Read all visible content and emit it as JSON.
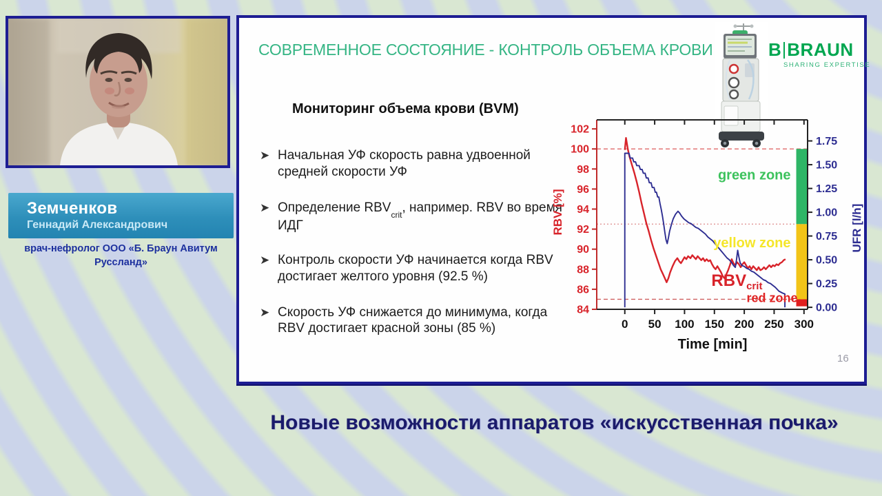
{
  "speaker": {
    "surname": "Земченков",
    "given_names": "Геннадий Александрович",
    "role": "врач-нефролог ООО «Б. Браун Авитум Руссланд»"
  },
  "slide": {
    "title": "СОВРЕМЕННОЕ СОСТОЯНИЕ - КОНТРОЛЬ ОБЪЕМА КРОВИ",
    "logo": {
      "b": "B",
      "braun": "BRAUN",
      "tagline": "SHARING EXPERTISE"
    },
    "heading": "Мониторинг объема крови (BVM)",
    "bullets": [
      {
        "pre": "Начальная УФ скорость равна удвоенной средней скорости УФ"
      },
      {
        "pre": "Определение RBV",
        "sub": "crit",
        "post": ", например. RBV во время ИДГ"
      },
      {
        "pre": "Контроль скорости УФ начинается когда RBV достигает желтого уровня (92.5 %)"
      },
      {
        "pre": "Скорость УФ снижается до минимума, когда RBV достигает красной зоны (85 %)"
      }
    ],
    "page_number": "16"
  },
  "footer": {
    "title": "Новые возможности аппаратов «искусственная почка»"
  },
  "chart_data": {
    "type": "line",
    "xlabel": "Time [min]",
    "ylabel_left": "RBV [%]",
    "ylabel_right": "UFR [l/h]",
    "x_ticks": [
      0,
      50,
      100,
      150,
      200,
      250,
      300
    ],
    "x_range_shown": [
      -47,
      306
    ],
    "y_left_ticks": [
      84,
      86,
      88,
      90,
      92,
      94,
      96,
      98,
      100,
      102
    ],
    "y_left_range": [
      84,
      102.9
    ],
    "y_right_tick_labels": [
      "0.00",
      "0.25",
      "0.50",
      "0.75",
      "1.00",
      "1.25",
      "1.50",
      "1.75"
    ],
    "y_right_range": [
      0,
      1.75
    ],
    "right_axis_alignment_in_left_units": {
      "ufr_0": 84.2,
      "ufr_1_75": 100.8
    },
    "reference_lines": [
      {
        "y": 100,
        "style": "dashed",
        "color": "#e06a6a"
      },
      {
        "y": 92.5,
        "style": "dotted",
        "color": "#e09595"
      },
      {
        "y": 85,
        "style": "dashed",
        "color": "#cf5f5f"
      }
    ],
    "zones": [
      {
        "label": "green zone",
        "from": 92.5,
        "to": 100,
        "bar_color": "#2eb566",
        "label_color": "#3cc25c"
      },
      {
        "label": "yellow zone",
        "from": 85,
        "to": 92.5,
        "bar_color": "#f2c418",
        "label_color": "#f5e62a"
      },
      {
        "label": "red zone",
        "from": 84.3,
        "to": 85,
        "bar_color": "#e01f1f",
        "label_color": "#e02424"
      }
    ],
    "zone_bar_x_from": 287,
    "annotations": [
      {
        "text": "RBV",
        "sub": "crit",
        "color": "#d8232a",
        "x": 145,
        "y": 87.3
      }
    ],
    "series": [
      {
        "name": "RBV",
        "axis": "left",
        "color": "#d8232a",
        "width": 2.4,
        "points": [
          [
            0,
            99.9
          ],
          [
            2,
            101.1
          ],
          [
            5,
            100.0
          ],
          [
            8,
            99.2
          ],
          [
            12,
            98.4
          ],
          [
            16,
            97.6
          ],
          [
            20,
            96.7
          ],
          [
            24,
            95.7
          ],
          [
            28,
            94.6
          ],
          [
            32,
            93.6
          ],
          [
            36,
            92.6
          ],
          [
            40,
            91.8
          ],
          [
            44,
            90.9
          ],
          [
            48,
            90.1
          ],
          [
            52,
            89.4
          ],
          [
            56,
            88.7
          ],
          [
            60,
            88.0
          ],
          [
            64,
            87.5
          ],
          [
            67,
            87.1
          ],
          [
            70,
            86.7
          ],
          [
            73,
            87.1
          ],
          [
            76,
            87.7
          ],
          [
            80,
            88.3
          ],
          [
            84,
            88.8
          ],
          [
            88,
            89.1
          ],
          [
            91,
            88.8
          ],
          [
            94,
            88.6
          ],
          [
            97,
            88.9
          ],
          [
            100,
            89.2
          ],
          [
            103,
            89.0
          ],
          [
            106,
            89.3
          ],
          [
            110,
            89.1
          ],
          [
            113,
            89.4
          ],
          [
            116,
            89.2
          ],
          [
            119,
            89.0
          ],
          [
            122,
            89.3
          ],
          [
            125,
            89.1
          ],
          [
            128,
            88.9
          ],
          [
            131,
            89.1
          ],
          [
            134,
            88.8
          ],
          [
            137,
            89.0
          ],
          [
            140,
            88.8
          ],
          [
            143,
            88.9
          ],
          [
            146,
            88.5
          ],
          [
            149,
            88.2
          ],
          [
            152,
            88.0
          ],
          [
            155,
            88.3
          ],
          [
            158,
            88.0
          ],
          [
            161,
            87.7
          ],
          [
            164,
            87.3
          ],
          [
            167,
            87.1
          ],
          [
            170,
            87.5
          ],
          [
            173,
            87.9
          ],
          [
            176,
            88.4
          ],
          [
            179,
            89.0
          ],
          [
            182,
            88.6
          ],
          [
            185,
            88.4
          ],
          [
            188,
            88.7
          ],
          [
            191,
            88.5
          ],
          [
            194,
            88.2
          ],
          [
            197,
            88.5
          ],
          [
            200,
            88.7
          ],
          [
            203,
            88.4
          ],
          [
            206,
            88.1
          ],
          [
            209,
            88.3
          ],
          [
            212,
            88.0
          ],
          [
            215,
            88.3
          ],
          [
            218,
            88.1
          ],
          [
            221,
            87.9
          ],
          [
            224,
            88.2
          ],
          [
            227,
            87.9
          ],
          [
            230,
            88.0
          ],
          [
            233,
            88.2
          ],
          [
            236,
            88.0
          ],
          [
            239,
            88.2
          ],
          [
            242,
            88.4
          ],
          [
            245,
            88.2
          ],
          [
            248,
            88.4
          ],
          [
            251,
            88.3
          ],
          [
            254,
            88.5
          ],
          [
            257,
            88.4
          ],
          [
            260,
            88.6
          ],
          [
            263,
            88.7
          ],
          [
            266,
            88.9
          ],
          [
            269,
            89.0
          ]
        ]
      },
      {
        "name": "UFR",
        "axis": "right",
        "color": "#2d2d91",
        "width": 1.9,
        "points": [
          [
            0,
            0
          ],
          [
            0,
            1.62
          ],
          [
            7,
            1.62
          ],
          [
            9,
            1.57
          ],
          [
            13,
            1.57
          ],
          [
            15,
            1.53
          ],
          [
            18,
            1.53
          ],
          [
            20,
            1.49
          ],
          [
            24,
            1.49
          ],
          [
            26,
            1.45
          ],
          [
            29,
            1.45
          ],
          [
            31,
            1.41
          ],
          [
            34,
            1.41
          ],
          [
            36,
            1.36
          ],
          [
            39,
            1.36
          ],
          [
            41,
            1.31
          ],
          [
            44,
            1.31
          ],
          [
            46,
            1.26
          ],
          [
            49,
            1.26
          ],
          [
            51,
            1.21
          ],
          [
            53,
            1.21
          ],
          [
            55,
            1.16
          ],
          [
            57,
            1.16
          ],
          [
            59,
            1.09
          ],
          [
            61,
            1.03
          ],
          [
            63,
            0.96
          ],
          [
            65,
            0.88
          ],
          [
            67,
            0.79
          ],
          [
            69,
            0.71
          ],
          [
            71,
            0.67
          ],
          [
            73,
            0.73
          ],
          [
            75,
            0.8
          ],
          [
            78,
            0.87
          ],
          [
            81,
            0.93
          ],
          [
            85,
            0.98
          ],
          [
            89,
            1.01
          ],
          [
            92,
            0.99
          ],
          [
            95,
            0.96
          ],
          [
            99,
            0.93
          ],
          [
            103,
            0.91
          ],
          [
            107,
            0.89
          ],
          [
            111,
            0.88
          ],
          [
            115,
            0.86
          ],
          [
            119,
            0.84
          ],
          [
            123,
            0.83
          ],
          [
            127,
            0.81
          ],
          [
            131,
            0.79
          ],
          [
            135,
            0.77
          ],
          [
            139,
            0.74
          ],
          [
            143,
            0.72
          ],
          [
            147,
            0.7
          ],
          [
            151,
            0.67
          ],
          [
            155,
            0.64
          ],
          [
            159,
            0.61
          ],
          [
            163,
            0.58
          ],
          [
            167,
            0.55
          ],
          [
            171,
            0.52
          ],
          [
            175,
            0.5
          ],
          [
            179,
            0.47
          ],
          [
            182,
            0.44
          ],
          [
            185,
            0.42
          ],
          [
            187,
            0.5
          ],
          [
            189,
            0.6
          ],
          [
            191,
            0.53
          ],
          [
            193,
            0.47
          ],
          [
            196,
            0.44
          ],
          [
            200,
            0.43
          ],
          [
            204,
            0.41
          ],
          [
            208,
            0.4
          ],
          [
            212,
            0.38
          ],
          [
            216,
            0.37
          ],
          [
            220,
            0.35
          ],
          [
            224,
            0.33
          ],
          [
            228,
            0.31
          ],
          [
            232,
            0.29
          ],
          [
            236,
            0.28
          ],
          [
            240,
            0.26
          ],
          [
            244,
            0.25
          ],
          [
            248,
            0.23
          ],
          [
            252,
            0.21
          ],
          [
            255,
            0.19
          ],
          [
            258,
            0.17
          ],
          [
            261,
            0.16
          ],
          [
            264,
            0.15
          ],
          [
            268,
            0.14
          ],
          [
            268,
            0
          ]
        ]
      }
    ]
  },
  "colors": {
    "slide_border": "#1d1d93",
    "title_green": "#35b584",
    "logo_green": "#00a650",
    "rbv_red": "#d8232a",
    "ufr_navy": "#2d2d91",
    "nameplate_blue": "#2e8fba",
    "footer_navy": "#1b1b6b"
  }
}
